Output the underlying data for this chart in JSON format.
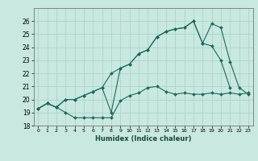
{
  "title": "",
  "xlabel": "Humidex (Indice chaleur)",
  "ylabel": "",
  "bg_color": "#c8e8e0",
  "grid_color": "#aed4ca",
  "line_color": "#1a6b5a",
  "xlim": [
    -0.5,
    23.5
  ],
  "ylim": [
    18,
    27
  ],
  "yticks": [
    18,
    19,
    20,
    21,
    22,
    23,
    24,
    25,
    26
  ],
  "xticks": [
    0,
    1,
    2,
    3,
    4,
    5,
    6,
    7,
    8,
    9,
    10,
    11,
    12,
    13,
    14,
    15,
    16,
    17,
    18,
    19,
    20,
    21,
    22,
    23
  ],
  "series": [
    [
      19.3,
      19.7,
      19.4,
      19.0,
      18.6,
      18.6,
      18.6,
      18.6,
      18.6,
      19.9,
      20.3,
      20.5,
      20.9,
      21.0,
      20.6,
      20.4,
      20.5,
      20.4,
      20.4,
      20.5,
      20.4,
      20.5,
      20.4,
      20.5
    ],
    [
      19.3,
      19.7,
      19.4,
      20.0,
      20.0,
      20.3,
      20.6,
      20.9,
      19.0,
      22.4,
      22.7,
      23.5,
      23.8,
      24.8,
      25.2,
      25.4,
      25.5,
      26.0,
      24.3,
      24.1,
      23.0,
      20.9,
      null,
      null
    ],
    [
      19.3,
      19.7,
      19.4,
      20.0,
      20.0,
      20.3,
      20.6,
      20.9,
      22.0,
      22.4,
      22.7,
      23.5,
      23.8,
      24.8,
      25.2,
      25.4,
      25.5,
      26.0,
      24.3,
      25.8,
      25.5,
      22.9,
      20.9,
      20.4
    ]
  ]
}
